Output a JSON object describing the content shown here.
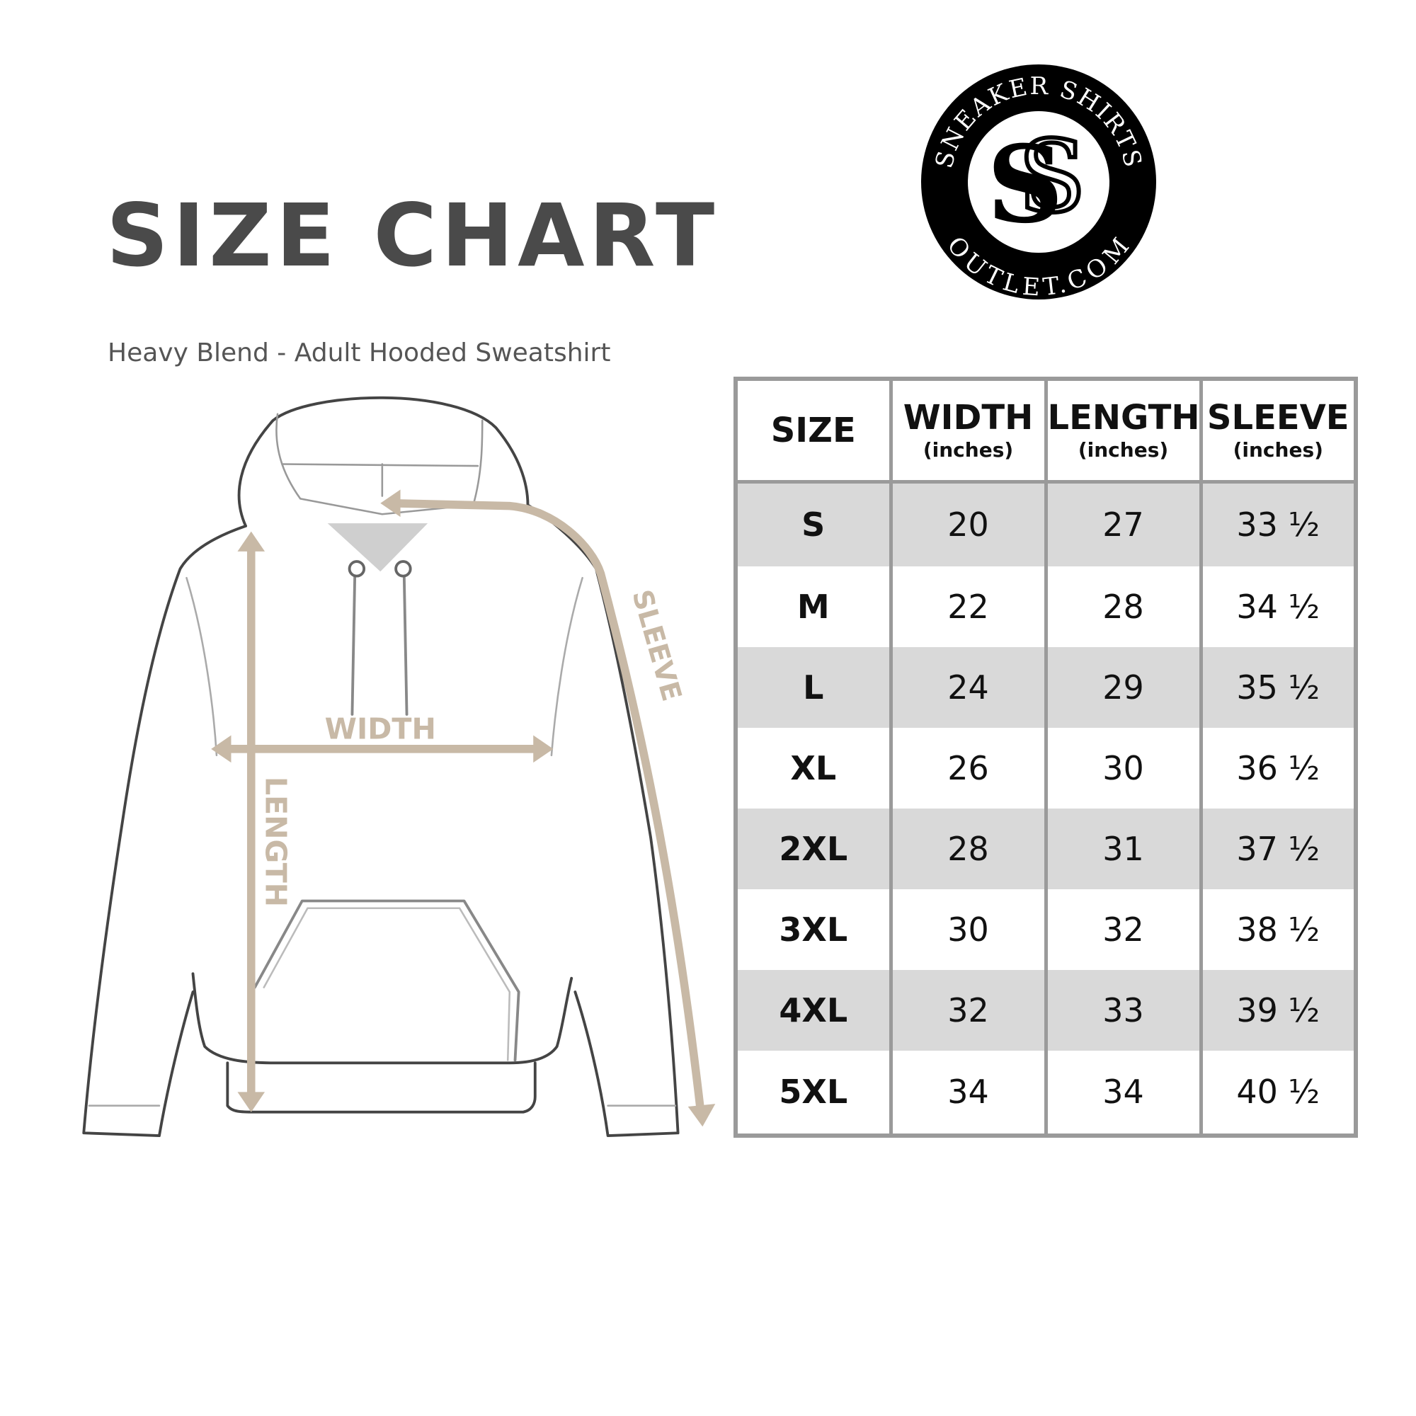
{
  "title": "SIZE CHART",
  "subtitle": "Heavy Blend - Adult Hooded Sweatshirt",
  "logo": {
    "top_text": "SNEAKER SHIRTS",
    "bottom_text": "OUTLET.COM",
    "monogram": "SS"
  },
  "diagram": {
    "width_label": "WIDTH",
    "length_label": "LENGTH",
    "sleeve_label": "SLEEVE",
    "measure_color": "#c8b9a6"
  },
  "table": {
    "headers": [
      {
        "label": "SIZE",
        "unit": ""
      },
      {
        "label": "WIDTH",
        "unit": "(inches)"
      },
      {
        "label": "LENGTH",
        "unit": "(inches)"
      },
      {
        "label": "SLEEVE",
        "unit": "(inches)"
      }
    ],
    "rows": [
      [
        "S",
        "20",
        "27",
        "33 ½"
      ],
      [
        "M",
        "22",
        "28",
        "34 ½"
      ],
      [
        "L",
        "24",
        "29",
        "35 ½"
      ],
      [
        "XL",
        "26",
        "30",
        "36 ½"
      ],
      [
        "2XL",
        "28",
        "31",
        "37 ½"
      ],
      [
        "3XL",
        "30",
        "32",
        "38 ½"
      ],
      [
        "4XL",
        "32",
        "33",
        "39 ½"
      ],
      [
        "5XL",
        "34",
        "34",
        "40 ½"
      ]
    ]
  }
}
